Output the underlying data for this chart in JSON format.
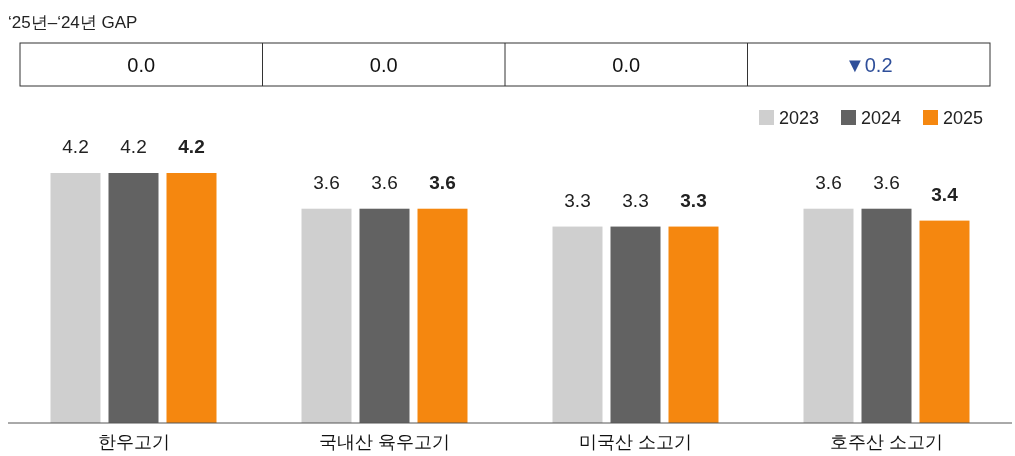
{
  "chart_data": {
    "type": "bar",
    "categories": [
      "한우고기",
      "국내산 육우고기",
      "미국산 소고기",
      "호주산 소고기"
    ],
    "series": [
      {
        "name": "2023",
        "color": "#cfcfcf",
        "values": [
          4.2,
          3.6,
          3.3,
          3.6
        ]
      },
      {
        "name": "2024",
        "color": "#626262",
        "values": [
          4.2,
          3.6,
          3.3,
          3.6
        ]
      },
      {
        "name": "2025",
        "color": "#f5870f",
        "values": [
          4.2,
          3.6,
          3.3,
          3.4
        ]
      }
    ],
    "data_labels": true,
    "legend": "top right",
    "annotations": [
      "‘25년–‘24년 GAP",
      "0.0",
      "0.0",
      "0.0",
      "▼0.2"
    ]
  }
}
